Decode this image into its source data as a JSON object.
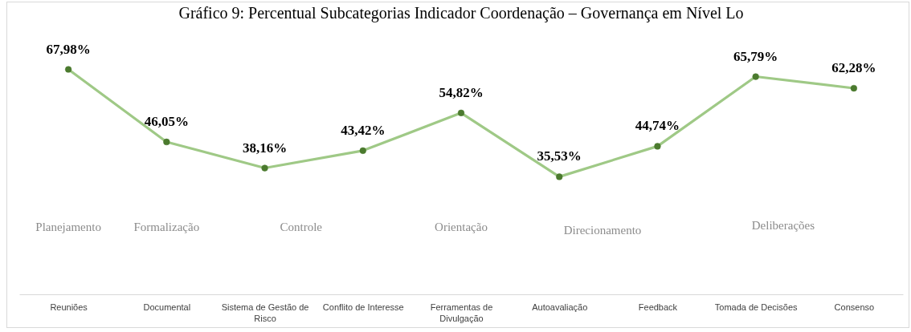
{
  "chart_data": {
    "type": "line",
    "title": "Gráfico 9: Percentual Subcategorias Indicador Coordenação – Governança em Nível Lo",
    "categories": [
      "Reuniões",
      "Documental",
      "Sistema de Gestão de Risco",
      "Conflito de Interesse",
      "Ferramentas de Divulgação",
      "Autoavaliação",
      "Feedback",
      "Tomada de Decisões",
      "Consenso"
    ],
    "values": [
      67.98,
      46.05,
      38.16,
      43.42,
      54.82,
      35.53,
      44.74,
      65.79,
      62.28
    ],
    "value_labels": [
      "67,98%",
      "46,05%",
      "38,16%",
      "43,42%",
      "54,82%",
      "35,53%",
      "44,74%",
      "65,79%",
      "62,28%"
    ],
    "color": "#9fc986",
    "marker": "circle",
    "line_style": "solid",
    "annotations": [
      "Planejamento",
      "Formalização",
      "Controle",
      "Orientação",
      "Direcionamento",
      "Deliberações"
    ]
  }
}
